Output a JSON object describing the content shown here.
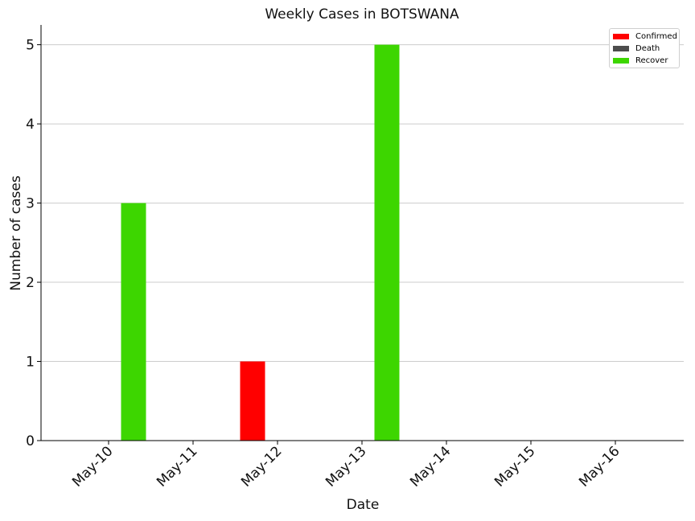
{
  "chart_data": {
    "type": "bar",
    "title": "Weekly Cases in BOTSWANA",
    "xlabel": "Date",
    "ylabel": "Number of cases",
    "categories": [
      "May-10",
      "May-11",
      "May-12",
      "May-13",
      "May-14",
      "May-15",
      "May-16"
    ],
    "series": [
      {
        "name": "Confirmed",
        "color": "#ff0000",
        "values": [
          0,
          0,
          1,
          0,
          0,
          0,
          0
        ]
      },
      {
        "name": "Death",
        "color": "#4d4d4d",
        "values": [
          0,
          0,
          0,
          0,
          0,
          0,
          0
        ]
      },
      {
        "name": "Recover",
        "color": "#3dd600",
        "values": [
          3,
          0,
          0,
          5,
          0,
          0,
          0
        ]
      }
    ],
    "yticks": [
      0,
      1,
      2,
      3,
      4,
      5
    ],
    "ylim": [
      0,
      5.25
    ],
    "grid": "horizontal",
    "legend_position": "top-right"
  }
}
